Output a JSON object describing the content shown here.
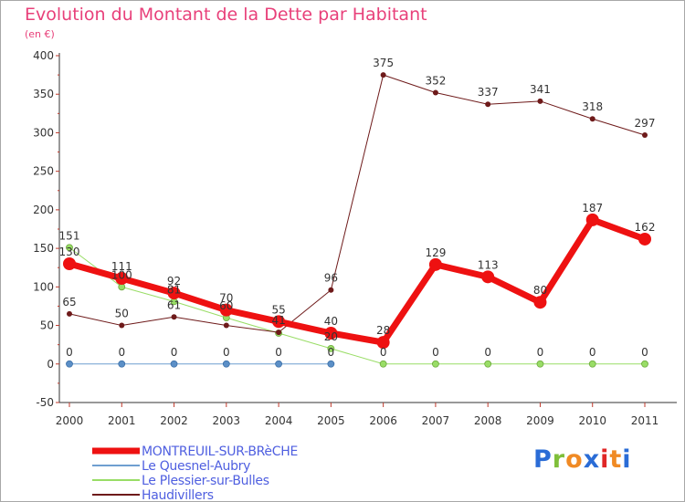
{
  "logo": {
    "text": "Proxiti"
  },
  "chart_data": {
    "type": "line",
    "title": "Evolution du Montant de la Dette par Habitant",
    "subtitle": "(en €)",
    "xlabel": "",
    "ylabel": "",
    "ylim": [
      -50,
      400
    ],
    "yticks": [
      -50,
      0,
      50,
      100,
      150,
      200,
      250,
      300,
      350,
      400
    ],
    "x": [
      2000,
      2001,
      2002,
      2003,
      2004,
      2005,
      2006,
      2007,
      2008,
      2009,
      2010,
      2011
    ],
    "grid": false,
    "legend_position": "bottom-left",
    "series": [
      {
        "name": "Le Plessier-sur-Bulles",
        "color": "#99dd66",
        "values": [
          151,
          100,
          81,
          60,
          40,
          20,
          0,
          0,
          0,
          0,
          0,
          0
        ],
        "labels": [
          "151",
          "100",
          "81",
          "60",
          "",
          "20",
          "",
          "",
          "",
          "",
          "",
          ""
        ]
      },
      {
        "name": "Haudivillers",
        "color": "#6e1a1a",
        "values": [
          65,
          50,
          61,
          50,
          41,
          96,
          375,
          352,
          337,
          341,
          318,
          297
        ],
        "labels": [
          "65",
          "50",
          "61",
          "",
          "41",
          "96",
          "375",
          "352",
          "337",
          "341",
          "318",
          "297"
        ]
      },
      {
        "name": "Le Quesnel-Aubry",
        "color": "#6f9fd0",
        "values": [
          0,
          0,
          0,
          0,
          0,
          0,
          null,
          null,
          null,
          null,
          null,
          null
        ],
        "labels": [
          "0",
          "0",
          "0",
          "0",
          "0",
          "0",
          "",
          "",
          "",
          "",
          "",
          ""
        ]
      },
      {
        "name": "MONTREUIL-SUR-BRèCHE",
        "color": "#ee1111",
        "values": [
          130,
          111,
          92,
          70,
          55,
          40,
          28,
          129,
          113,
          80,
          187,
          162
        ],
        "labels": [
          "130",
          "111",
          "92",
          "70",
          "55",
          "40",
          "28",
          "129",
          "113",
          "80",
          "187",
          "162"
        ]
      }
    ],
    "zero_labels_late": [
      "0",
      "0",
      "0",
      "0",
      "0",
      "0"
    ]
  }
}
